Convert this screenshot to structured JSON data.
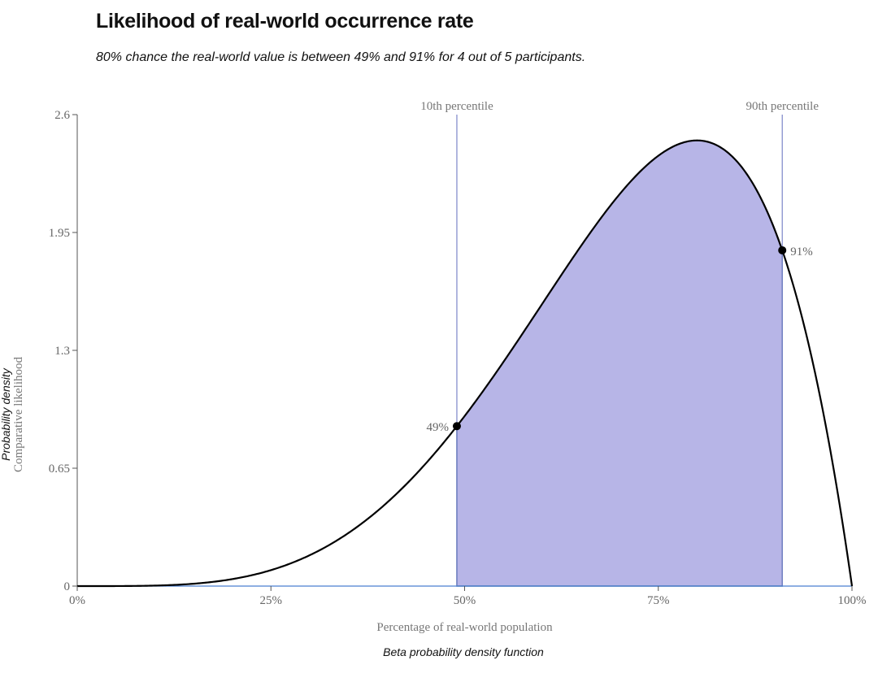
{
  "page": {
    "title": "Likelihood of real-world occurrence rate",
    "subtitle": "80% chance the real-world value is between 49% and 91% for 4 out of 5 participants.",
    "caption": "Beta probability density function"
  },
  "chart_data": {
    "type": "area",
    "distribution": "beta",
    "alpha": 5,
    "beta": 2,
    "xlabel": "Percentage of real-world population",
    "ylabel_primary": "Probability density",
    "ylabel_secondary": "Comparative likelihood",
    "xlim": [
      0,
      1
    ],
    "ylim": [
      0,
      2.6
    ],
    "x_ticks": [
      {
        "value": 0,
        "label": "0%"
      },
      {
        "value": 0.25,
        "label": "25%"
      },
      {
        "value": 0.5,
        "label": "50%"
      },
      {
        "value": 0.75,
        "label": "75%"
      },
      {
        "value": 1,
        "label": "100%"
      }
    ],
    "y_ticks": [
      {
        "value": 0,
        "label": "0"
      },
      {
        "value": 0.65,
        "label": "0.65"
      },
      {
        "value": 1.3,
        "label": "1.3"
      },
      {
        "value": 1.95,
        "label": "1.95"
      },
      {
        "value": 2.6,
        "label": "2.6"
      }
    ],
    "percentiles": [
      {
        "name": "10th percentile",
        "x": 0.49,
        "point_label": "49%"
      },
      {
        "name": "90th percentile",
        "x": 0.91,
        "point_label": "91%"
      }
    ],
    "shaded_interval": [
      0.49,
      0.91
    ],
    "grid": false,
    "colors": {
      "curve": "#000000",
      "fill": "#b7b5e7",
      "fill_stroke": "#4a6fa5",
      "percentile_line": "#7b86c9",
      "baseline": "#4a7fd0",
      "axis": "#555555"
    }
  }
}
